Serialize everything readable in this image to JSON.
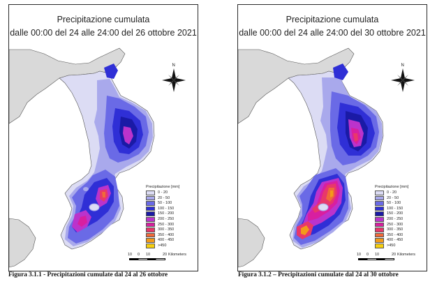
{
  "maps": [
    {
      "title_line1": "Precipitazione cumulata",
      "title_line2": "dalle 00:00 del 24 alle 24:00 del 26 ottobre 2021",
      "caption": "Figura 3.1.1 - Precipitazioni cumulate dal 24 al 26 ottobre"
    },
    {
      "title_line1": "Precipitazione cumulata",
      "title_line2": "dalle 00:00 del 24 alle 24:00 del 30 ottobre 2021",
      "caption": "Figura 3.1.2 – Precipitazioni cumulate dal 24 al 30 ottobre"
    }
  ],
  "legend": {
    "title": "Precipitazione [mm]",
    "classes": [
      {
        "label": "0 - 20",
        "color": "#dcdcf4"
      },
      {
        "label": "20 - 50",
        "color": "#a9a9ec"
      },
      {
        "label": "50 - 100",
        "color": "#6a6ae6"
      },
      {
        "label": "100 - 150",
        "color": "#2f2fd6"
      },
      {
        "label": "150 - 200",
        "color": "#1a1aa6"
      },
      {
        "label": "200 - 250",
        "color": "#bb33cc"
      },
      {
        "label": "250 - 300",
        "color": "#d81fa0"
      },
      {
        "label": "300 - 350",
        "color": "#e8386a"
      },
      {
        "label": "350 - 400",
        "color": "#f06a3a"
      },
      {
        "label": "400 - 450",
        "color": "#f39a1a"
      },
      {
        "label": ">450",
        "color": "#f6cf10"
      }
    ]
  },
  "north_arrow": {
    "label": "N"
  },
  "scale_bar": {
    "ticks": [
      "10",
      "0",
      "10",
      "20"
    ],
    "unit": "Kilometers"
  },
  "colors": {
    "land": "#d9d9d9",
    "sea": "#ffffff",
    "border": "#2a2a2a"
  }
}
